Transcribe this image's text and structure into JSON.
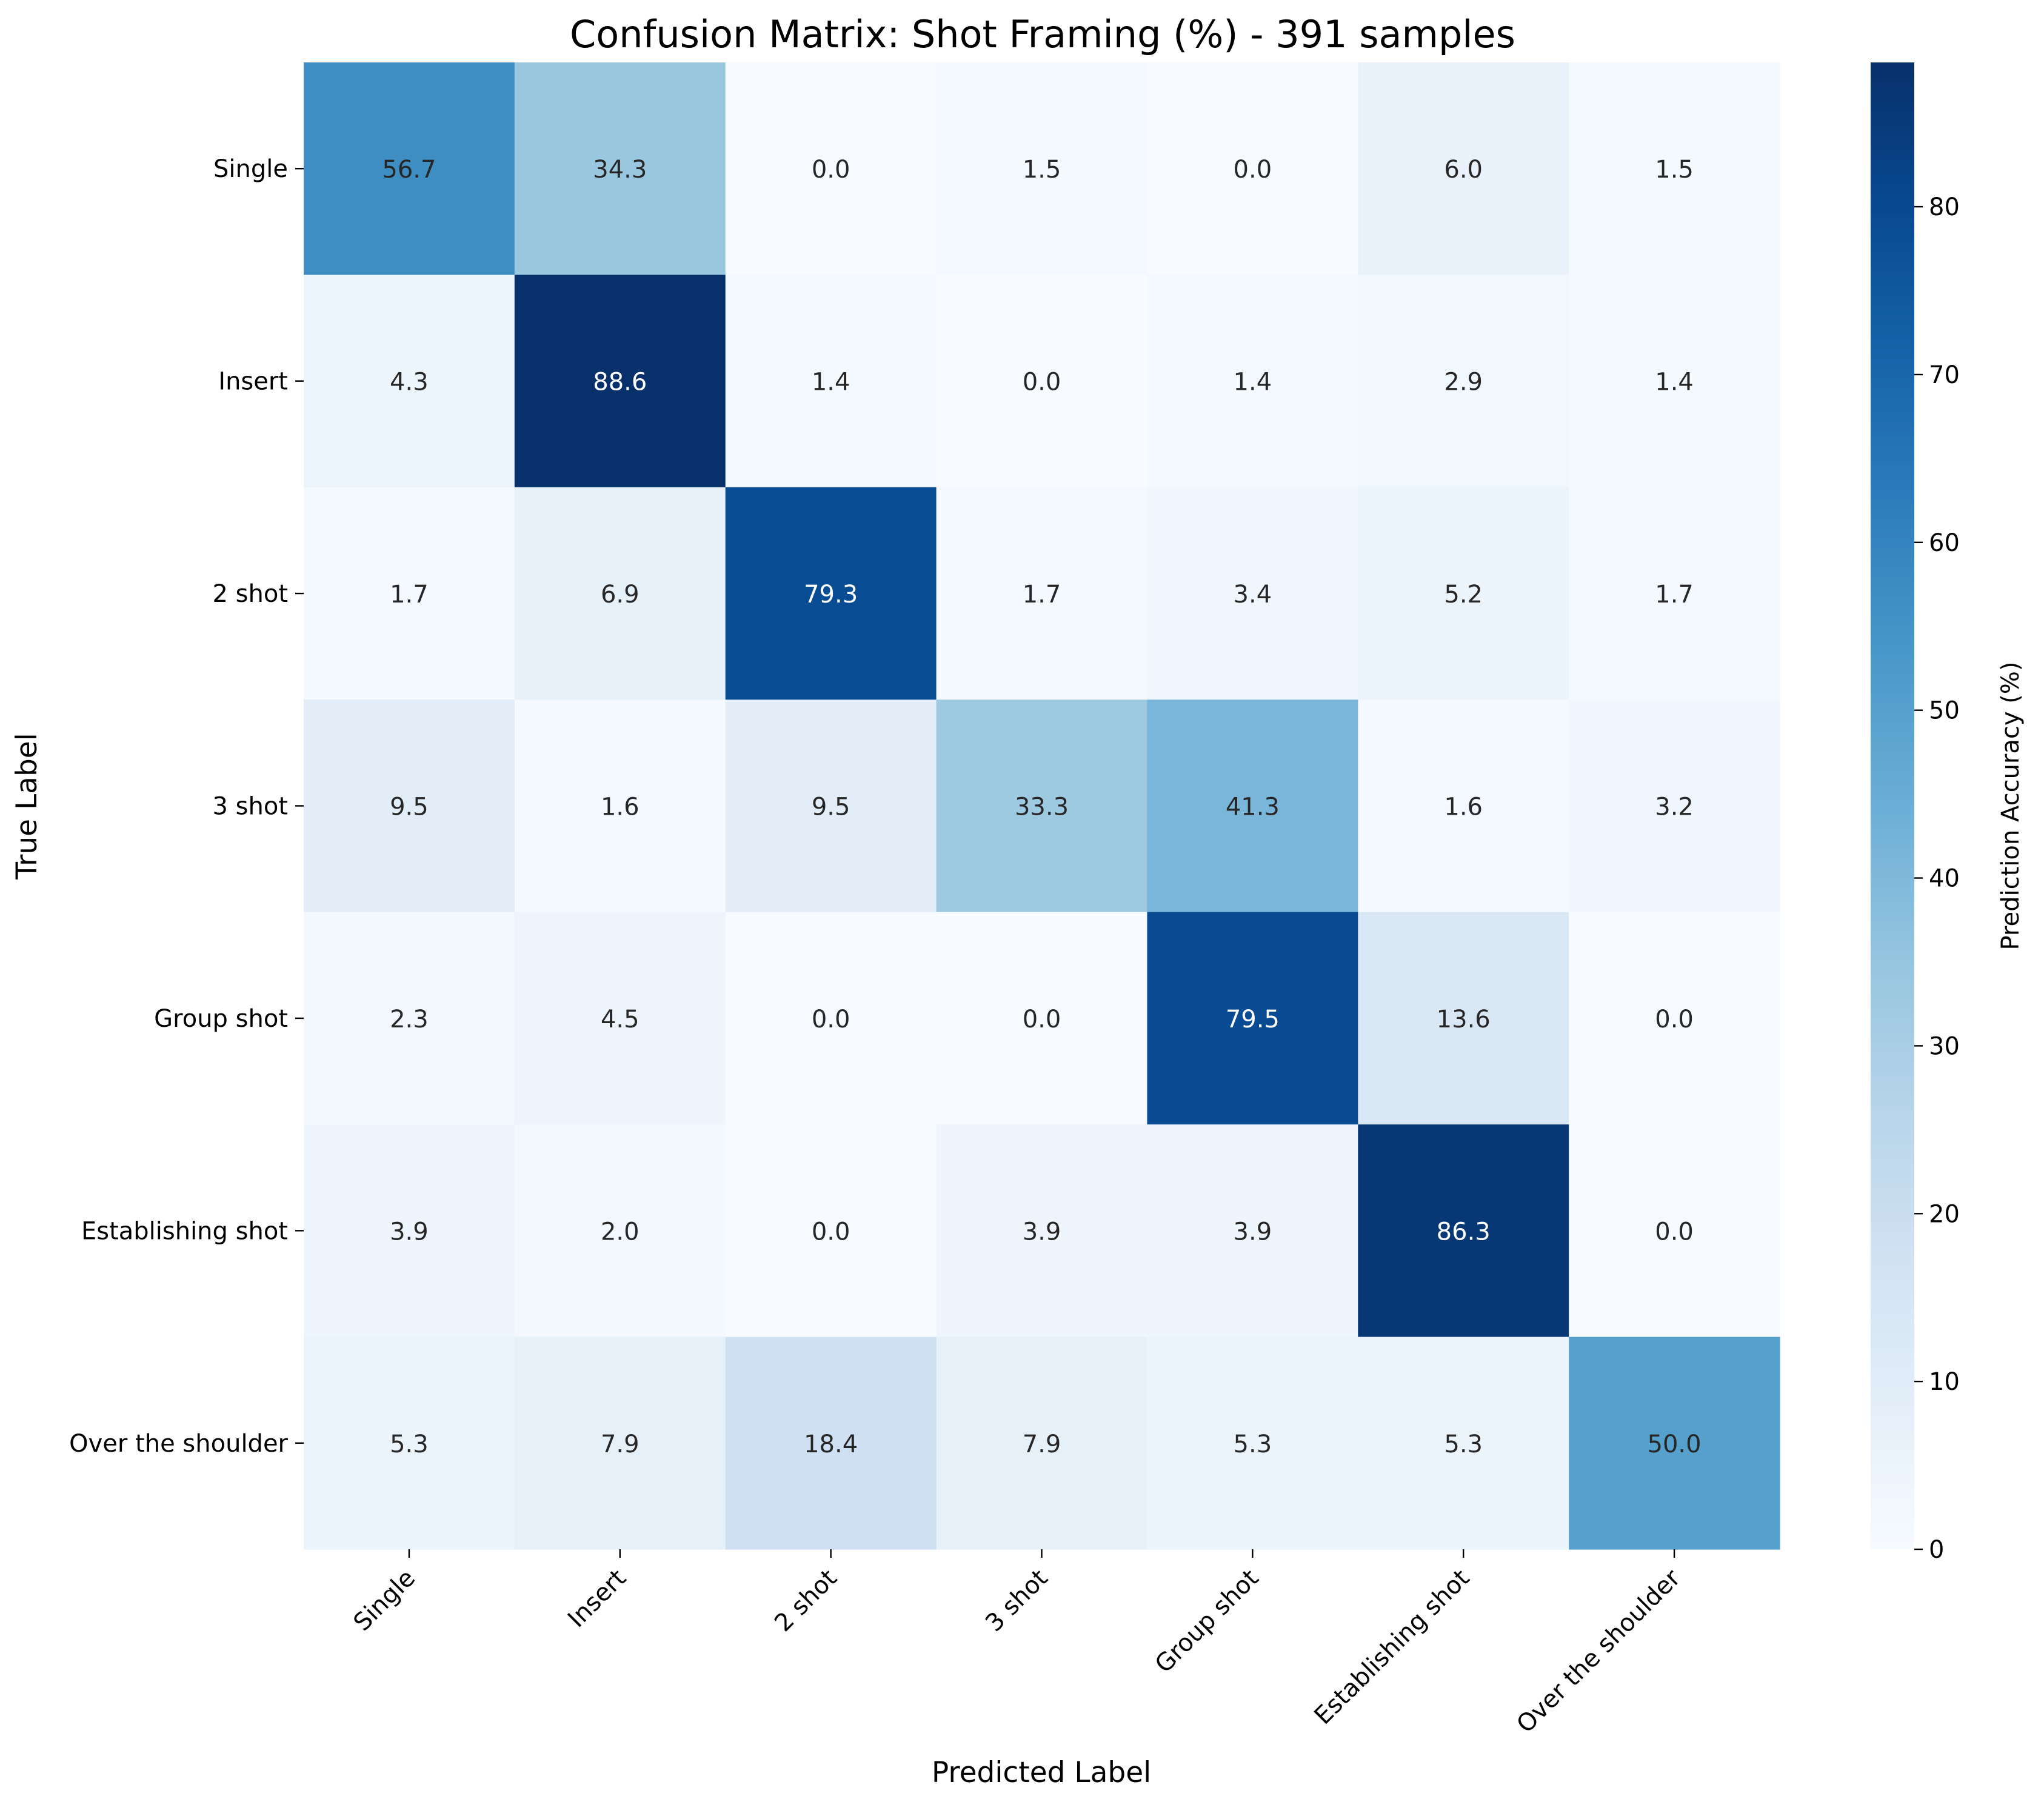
{
  "chart_data": {
    "type": "heatmap",
    "title": "Confusion Matrix: Shot Framing (%) - 391 samples",
    "xlabel": "Predicted Label",
    "ylabel": "True Label",
    "x_categories": [
      "Single",
      "Insert",
      "2 shot",
      "3 shot",
      "Group shot",
      "Establishing shot",
      "Over the shoulder"
    ],
    "y_categories": [
      "Single",
      "Insert",
      "2 shot",
      "3 shot",
      "Group shot",
      "Establishing shot",
      "Over the shoulder"
    ],
    "values": [
      [
        56.7,
        34.3,
        0.0,
        1.5,
        0.0,
        6.0,
        1.5
      ],
      [
        4.3,
        88.6,
        1.4,
        0.0,
        1.4,
        2.9,
        1.4
      ],
      [
        1.7,
        6.9,
        79.3,
        1.7,
        3.4,
        5.2,
        1.7
      ],
      [
        9.5,
        1.6,
        9.5,
        33.3,
        41.3,
        1.6,
        3.2
      ],
      [
        2.3,
        4.5,
        0.0,
        0.0,
        79.5,
        13.6,
        0.0
      ],
      [
        3.9,
        2.0,
        0.0,
        3.9,
        3.9,
        86.3,
        0.0
      ],
      [
        5.3,
        7.9,
        18.4,
        7.9,
        5.3,
        5.3,
        50.0
      ]
    ],
    "colorbar": {
      "label": "Prediction Accuracy (%)",
      "range": [
        0,
        88.6
      ],
      "ticks": [
        0,
        10,
        20,
        30,
        40,
        50,
        60,
        70,
        80
      ],
      "colormap": "Blues"
    },
    "grid": false
  }
}
